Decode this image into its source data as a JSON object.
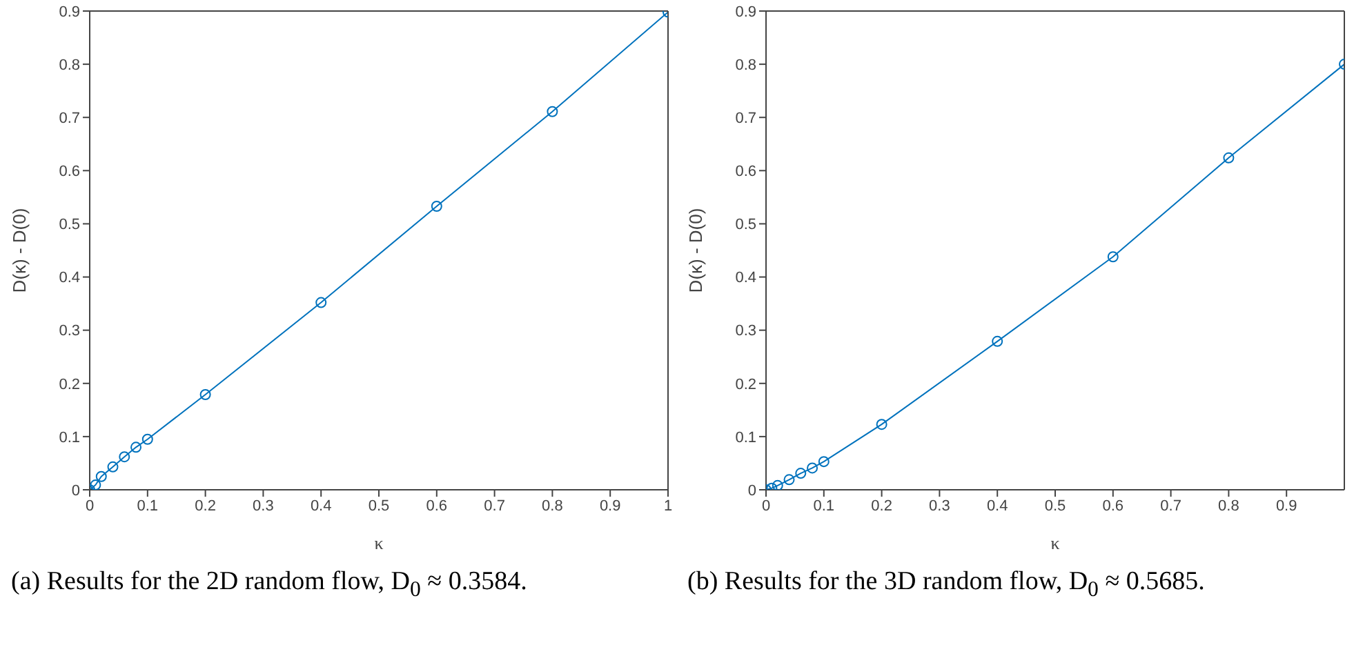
{
  "chart_data": [
    {
      "type": "line",
      "xlabel": "κ",
      "ylabel": "D(κ) - D(0)",
      "x": [
        0,
        0.01,
        0.02,
        0.04,
        0.06,
        0.08,
        0.1,
        0.2,
        0.4,
        0.6,
        0.8,
        1
      ],
      "series": [
        {
          "color": "#0072bd",
          "values": [
            0,
            0.009,
            0.025,
            0.043,
            0.062,
            0.08,
            0.095,
            0.179,
            0.352,
            0.533,
            0.711,
            0.898
          ]
        }
      ],
      "xlim": [
        0,
        1
      ],
      "xticks": [
        0,
        0.1,
        0.2,
        0.3,
        0.4,
        0.5,
        0.6,
        0.7,
        0.8,
        0.9,
        1
      ],
      "ylim": [
        0,
        0.9
      ],
      "yticks": [
        0,
        0.1,
        0.2,
        0.3,
        0.4,
        0.5,
        0.6,
        0.7,
        0.8,
        0.9
      ],
      "marker": "circle",
      "line_style": "solid",
      "grid": false,
      "legend": false,
      "annotations": [
        "(a) Results for the 2D random flow, D$_{0}$ ≈ 0.3584."
      ]
    },
    {
      "type": "line",
      "xlabel": "κ",
      "ylabel": "D(κ) - D(0)",
      "x": [
        0,
        0.01,
        0.02,
        0.04,
        0.06,
        0.08,
        0.1,
        0.2,
        0.4,
        0.6,
        0.8,
        1
      ],
      "series": [
        {
          "color": "#0072bd",
          "values": [
            0,
            0.003,
            0.008,
            0.019,
            0.031,
            0.041,
            0.053,
            0.123,
            0.279,
            0.438,
            0.624,
            0.8
          ]
        }
      ],
      "xlim": [
        0,
        1
      ],
      "xticks": [
        0,
        0.1,
        0.2,
        0.3,
        0.4,
        0.5,
        0.6,
        0.7,
        0.8,
        0.9
      ],
      "ylim": [
        0,
        0.9
      ],
      "yticks": [
        0,
        0.1,
        0.2,
        0.3,
        0.4,
        0.5,
        0.6,
        0.7,
        0.8,
        0.9
      ],
      "marker": "circle",
      "line_style": "solid",
      "grid": false,
      "legend": false,
      "annotations": [
        "(b) Results for the 3D random flow, D$_{0}$ ≈ 0.5685."
      ]
    }
  ]
}
